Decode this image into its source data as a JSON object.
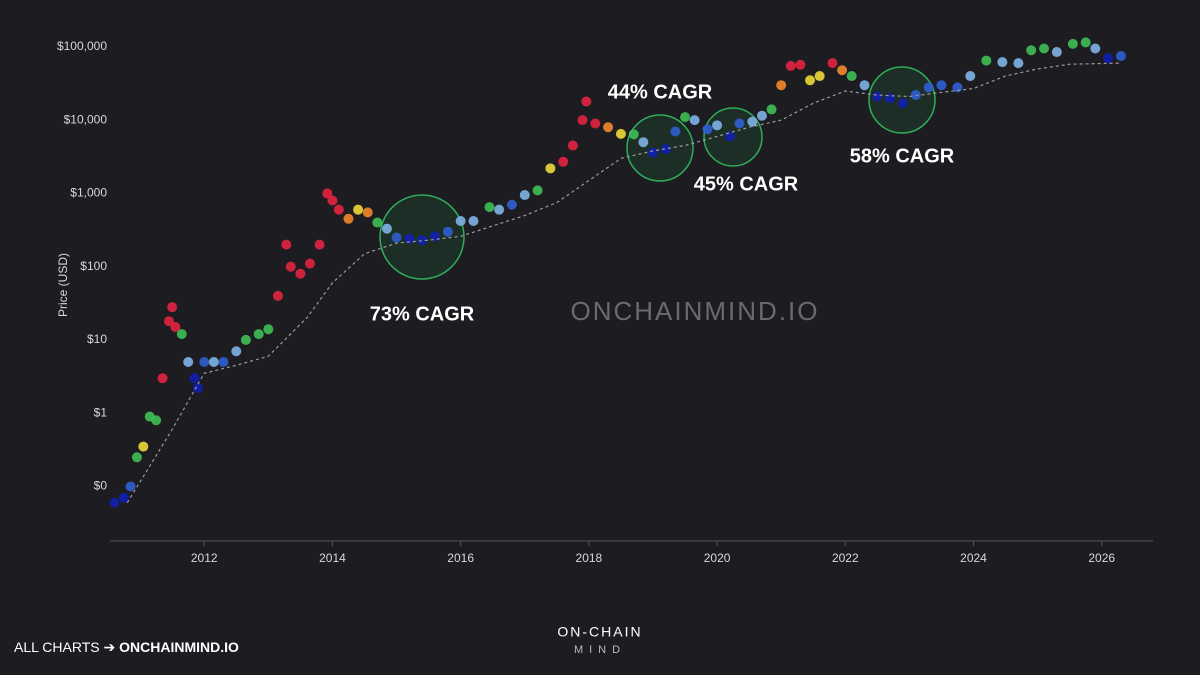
{
  "chart_data": {
    "type": "scatter",
    "y_label": "Price (USD)",
    "log_scale": true,
    "xlim": [
      2010.53,
      2026.8
    ],
    "ylim": [
      0.018,
      170000
    ],
    "xticks": [
      2012,
      2014,
      2016,
      2018,
      2020,
      2022,
      2024,
      2026
    ],
    "yticks": [
      {
        "value": 0.1,
        "label": "$0"
      },
      {
        "value": 1,
        "label": "$1"
      },
      {
        "value": 10,
        "label": "$10"
      },
      {
        "value": 100,
        "label": "$100"
      },
      {
        "value": 1000,
        "label": "$1,000"
      },
      {
        "value": 10000,
        "label": "$10,000"
      },
      {
        "value": 100000,
        "label": "$100,000"
      }
    ],
    "series": [
      {
        "mode": "dots",
        "x": [
          2010.6,
          2010.75,
          2010.85,
          2010.95,
          2011.05,
          2011.15,
          2011.25,
          2011.35,
          2011.45,
          2011.5,
          2011.55,
          2011.65,
          2011.75,
          2011.85,
          2011.9,
          2012.0,
          2012.15,
          2012.3,
          2012.5,
          2012.65,
          2012.85,
          2013.0,
          2013.15,
          2013.28,
          2013.35,
          2013.5,
          2013.65,
          2013.8,
          2013.92,
          2014.0,
          2014.1,
          2014.25,
          2014.4,
          2014.55,
          2014.7,
          2014.85,
          2015.0,
          2015.2,
          2015.4,
          2015.6,
          2015.8,
          2016.0,
          2016.2,
          2016.45,
          2016.6,
          2016.8,
          2017.0,
          2017.2,
          2017.4,
          2017.6,
          2017.75,
          2017.9,
          2017.96,
          2018.1,
          2018.3,
          2018.5,
          2018.7,
          2018.85,
          2019.0,
          2019.2,
          2019.35,
          2019.5,
          2019.65,
          2019.85,
          2020.0,
          2020.2,
          2020.35,
          2020.55,
          2020.7,
          2020.85,
          2021.0,
          2021.15,
          2021.3,
          2021.45,
          2021.6,
          2021.8,
          2021.95,
          2022.1,
          2022.3,
          2022.5,
          2022.7,
          2022.9,
          2023.1,
          2023.3,
          2023.5,
          2023.75,
          2023.95,
          2024.2,
          2024.45,
          2024.7,
          2024.9,
          2025.1,
          2025.3,
          2025.55,
          2025.75,
          2025.9,
          2026.1,
          2026.3
        ],
        "values": [
          0.06,
          0.07,
          0.1,
          0.25,
          0.35,
          0.9,
          0.8,
          3,
          18,
          28,
          15,
          12,
          5,
          3,
          2.2,
          5,
          5,
          5,
          7,
          10,
          12,
          14,
          40,
          200,
          100,
          80,
          110,
          200,
          1000,
          800,
          600,
          450,
          600,
          550,
          400,
          330,
          250,
          240,
          230,
          260,
          300,
          420,
          420,
          650,
          600,
          700,
          950,
          1100,
          2200,
          2700,
          4500,
          10000,
          18000,
          9000,
          8000,
          6500,
          6400,
          5000,
          3600,
          4000,
          7000,
          11000,
          10000,
          7500,
          8500,
          6000,
          9000,
          9500,
          11500,
          14000,
          30000,
          55000,
          57000,
          35000,
          40000,
          60000,
          48000,
          40000,
          30000,
          21000,
          20000,
          17000,
          22000,
          28000,
          30000,
          28000,
          40000,
          65000,
          62000,
          60000,
          90000,
          95000,
          85000,
          110000,
          115000,
          95000,
          70000,
          75000
        ],
        "colors": [
          "#1020b0",
          "#1020b0",
          "#2f5fd0",
          "#3fbf55",
          "#f0d83a",
          "#3fbf55",
          "#3fbf55",
          "#e3233f",
          "#e3233f",
          "#e3233f",
          "#e3233f",
          "#3fbf55",
          "#7fb2e6",
          "#1020b0",
          "#1020b0",
          "#2f5fd0",
          "#7fb2e6",
          "#2f5fd0",
          "#7fb2e6",
          "#3fbf55",
          "#3fbf55",
          "#3fbf55",
          "#e3233f",
          "#e3233f",
          "#e3233f",
          "#e3233f",
          "#e3233f",
          "#e3233f",
          "#e3233f",
          "#e3233f",
          "#e3233f",
          "#f2882a",
          "#f0d83a",
          "#f2882a",
          "#3fbf55",
          "#7fb2e6",
          "#2f5fd0",
          "#1020b0",
          "#1020b0",
          "#1020b0",
          "#2f5fd0",
          "#7fb2e6",
          "#7fb2e6",
          "#3fbf55",
          "#7fb2e6",
          "#2f5fd0",
          "#7fb2e6",
          "#3fbf55",
          "#f0d83a",
          "#e3233f",
          "#e3233f",
          "#e3233f",
          "#e3233f",
          "#e3233f",
          "#f2882a",
          "#f0d83a",
          "#3fbf55",
          "#7fb2e6",
          "#1020b0",
          "#1020b0",
          "#2f5fd0",
          "#3fbf55",
          "#7fb2e6",
          "#2f5fd0",
          "#7fb2e6",
          "#1020b0",
          "#2f5fd0",
          "#7fb2e6",
          "#7fb2e6",
          "#3fbf55",
          "#f2882a",
          "#e3233f",
          "#e3233f",
          "#f0d83a",
          "#f0d83a",
          "#e3233f",
          "#f2882a",
          "#3fbf55",
          "#7fb2e6",
          "#1020b0",
          "#1020b0",
          "#1020b0",
          "#2f5fd0",
          "#2f5fd0",
          "#2f5fd0",
          "#2f5fd0",
          "#7fb2e6",
          "#3fbf55",
          "#7fb2e6",
          "#7fb2e6",
          "#3fbf55",
          "#3fbf55",
          "#7fb2e6",
          "#3fbf55",
          "#3fbf55",
          "#7fb2e6",
          "#1020b0",
          "#2f5fd0"
        ]
      },
      {
        "mode": "dashed",
        "color": "#9a9aa0",
        "x": [
          2010.8,
          2011.5,
          2012.0,
          2012.5,
          2013.0,
          2013.6,
          2014.0,
          2014.5,
          2015.0,
          2015.5,
          2016.0,
          2016.5,
          2017.0,
          2017.5,
          2018.0,
          2018.5,
          2019.0,
          2019.5,
          2020.0,
          2020.5,
          2021.0,
          2021.5,
          2022.0,
          2022.5,
          2023.0,
          2023.5,
          2024.0,
          2024.5,
          2025.0,
          2025.5,
          2026.3
        ],
        "values": [
          0.06,
          0.6,
          3.5,
          4.5,
          6,
          20,
          60,
          150,
          210,
          230,
          260,
          360,
          500,
          750,
          1500,
          3000,
          3800,
          4500,
          6000,
          8000,
          10000,
          17000,
          25000,
          22000,
          21000,
          24000,
          27000,
          40000,
          50000,
          58000,
          60000
        ]
      }
    ],
    "annotations": [
      "73% CAGR",
      "44% CAGR",
      "45% CAGR",
      "58% CAGR"
    ],
    "watermark": "ONCHAINMIND.IO"
  },
  "footer": {
    "prefix": "ALL CHARTS ➔ ",
    "link": "ONCHAINMIND.IO",
    "brand_top": "ON-CHAIN",
    "brand_bottom": "MIND"
  }
}
